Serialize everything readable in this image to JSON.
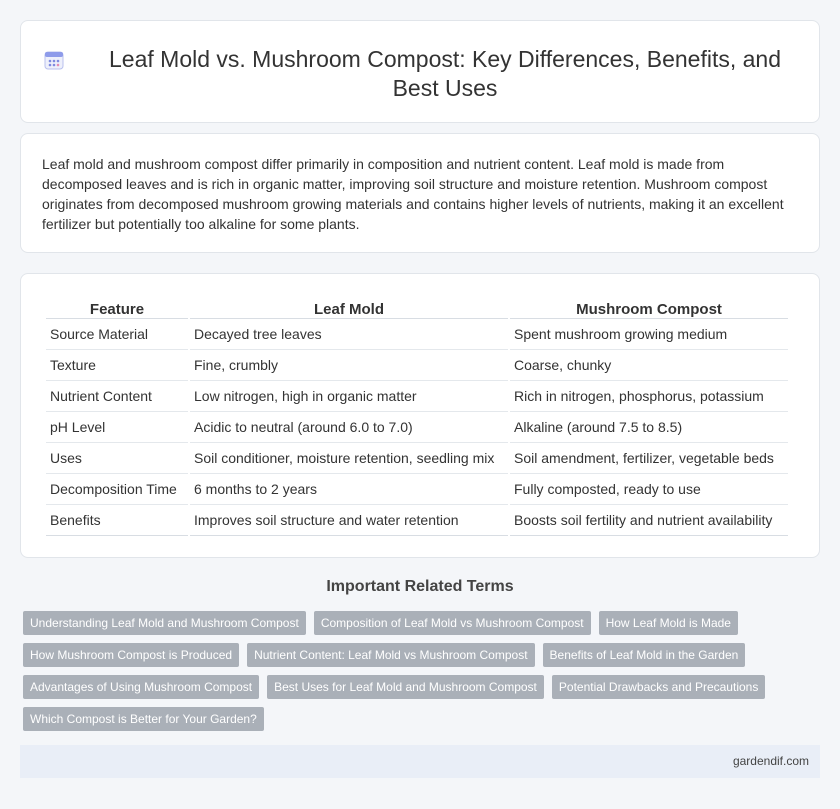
{
  "header": {
    "title": "Leaf Mold vs. Mushroom Compost: Key Differences, Benefits, and Best Uses",
    "icon": "calendar-icon"
  },
  "intro": {
    "text": "Leaf mold and mushroom compost differ primarily in composition and nutrient content. Leaf mold is made from decomposed leaves and is rich in organic matter, improving soil structure and moisture retention. Mushroom compost originates from decomposed mushroom growing materials and contains higher levels of nutrients, making it an excellent fertilizer but potentially too alkaline for some plants."
  },
  "table": {
    "headers": [
      "Feature",
      "Leaf Mold",
      "Mushroom Compost"
    ],
    "rows": [
      [
        "Source Material",
        "Decayed tree leaves",
        "Spent mushroom growing medium"
      ],
      [
        "Texture",
        "Fine, crumbly",
        "Coarse, chunky"
      ],
      [
        "Nutrient Content",
        "Low nitrogen, high in organic matter",
        "Rich in nitrogen, phosphorus, potassium"
      ],
      [
        "pH Level",
        "Acidic to neutral (around 6.0 to 7.0)",
        "Alkaline (around 7.5 to 8.5)"
      ],
      [
        "Uses",
        "Soil conditioner, moisture retention, seedling mix",
        "Soil amendment, fertilizer, vegetable beds"
      ],
      [
        "Decomposition Time",
        "6 months to 2 years",
        "Fully composted, ready to use"
      ],
      [
        "Benefits",
        "Improves soil structure and water retention",
        "Boosts soil fertility and nutrient availability"
      ]
    ]
  },
  "related": {
    "title": "Important Related Terms",
    "tags": [
      "Understanding Leaf Mold and Mushroom Compost",
      "Composition of Leaf Mold vs Mushroom Compost",
      "How Leaf Mold is Made",
      "How Mushroom Compost is Produced",
      "Nutrient Content: Leaf Mold vs Mushroom Compost",
      "Benefits of Leaf Mold in the Garden",
      "Advantages of Using Mushroom Compost",
      "Best Uses for Leaf Mold and Mushroom Compost",
      "Potential Drawbacks and Precautions",
      "Which Compost is Better for Your Garden?"
    ]
  },
  "footer": {
    "site": "gardendif.com"
  }
}
